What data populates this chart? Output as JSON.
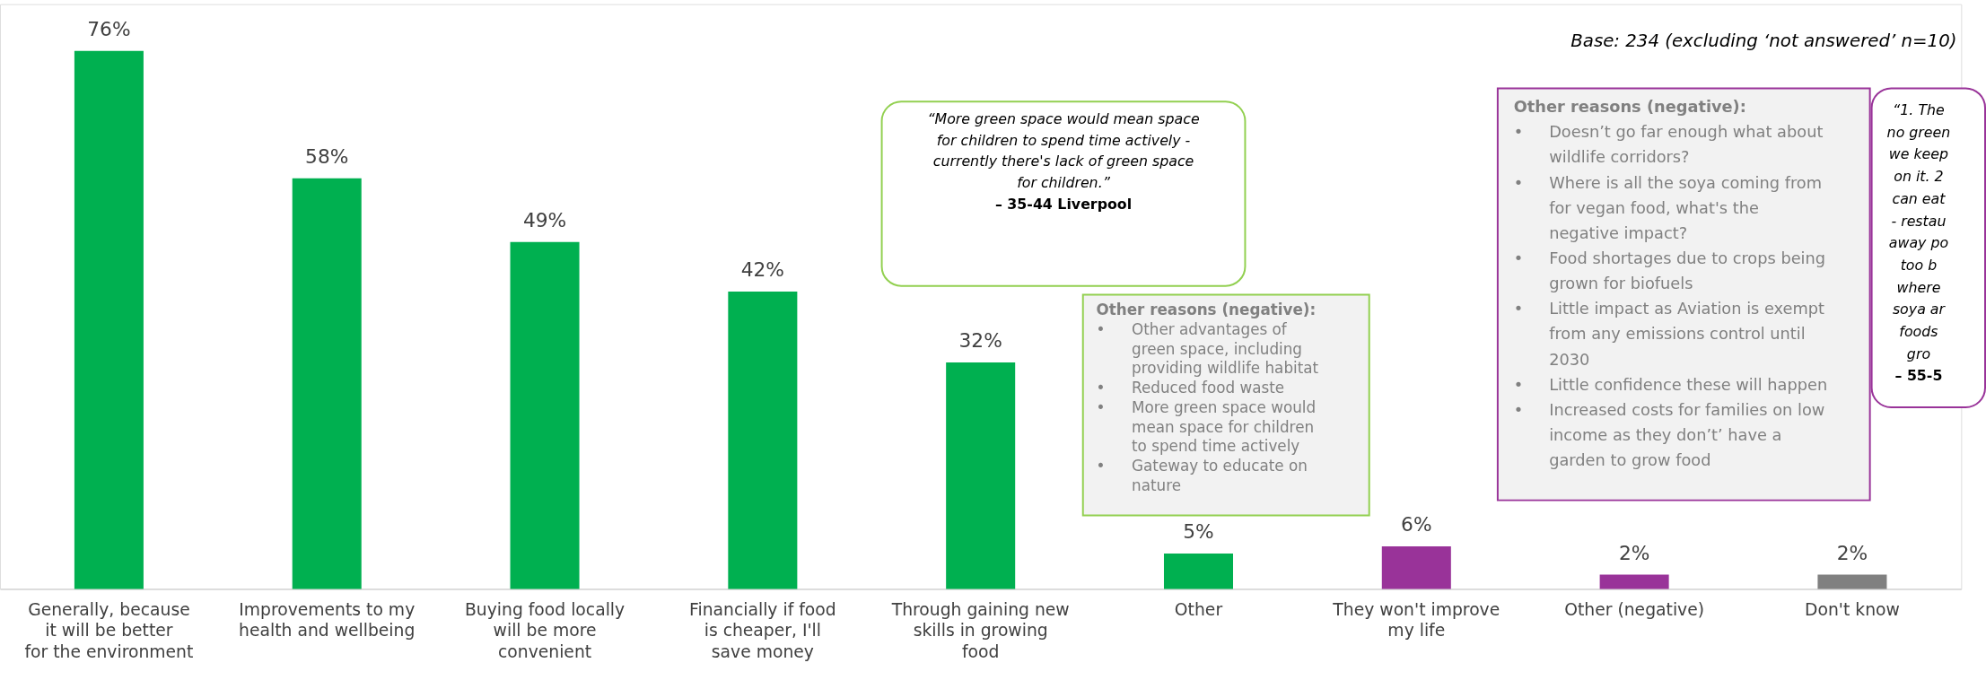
{
  "chart_data": {
    "type": "bar",
    "categories": [
      "Generally, because it will be better for the environment",
      "Improvements to my health and wellbeing",
      "Buying food locally will be more convenient",
      "Financially if food is cheaper, I'll save money",
      "Through gaining new skills in growing food",
      "Other",
      "They won't improve my life",
      "Other (negative)",
      "Don't know"
    ],
    "values": [
      76,
      58,
      49,
      42,
      32,
      5,
      6,
      2,
      2
    ],
    "value_labels": [
      "76%",
      "58%",
      "49%",
      "42%",
      "32%",
      "5%",
      "6%",
      "2%",
      "2%"
    ],
    "colors": [
      "#00b050",
      "#00b050",
      "#00b050",
      "#00b050",
      "#00b050",
      "#00b050",
      "#993399",
      "#993399",
      "#808080"
    ],
    "annotations": [
      "Base: 234 (excluding ‘not answered’ n=10)",
      "“More green space would mean space\nfor children to spend time actively -\ncurrently there's lack of green space\nfor children.”\n– 35-44 Liverpool",
      "Other reasons (negative):\n• Other advantages of\ngreen space, including\nproviding wildlife habitat\n• Reduced food waste\n• More green space would\nmean space for children\nto spend time actively\n• Gateway to educate on\nnature",
      "Other reasons (negative):\n• Doesn’t go far enough what about\nwildlife corridors?\n• Where is all the soya coming from\nfor vegan food, what's the\nnegative impact?\n• Food shortages due to crops being\ngrown for biofuels\n• Little impact as Aviation is exempt\nfrom any emissions control until\n2030\n• Little confidence these will happen\n• Increased costs for families on low\nincome as they don’t’ have a\ngarden to grow food",
      "“1. The\nno green\nwe keep\non it. 2\ncan eat\n- restau\naway po\ntoo b\nwhere\nsoya ar\nfoods\ngro\n– 55-5"
    ]
  }
}
